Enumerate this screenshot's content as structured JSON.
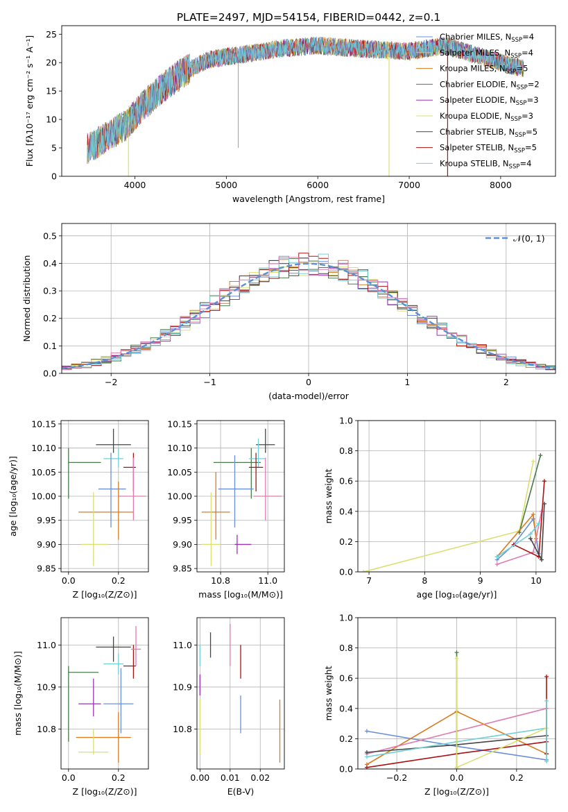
{
  "figure_title": "PLATE=2497, MJD=54154, FIBERID=0442, z=0.1",
  "colors": {
    "Chabrier MILES": "#6a8fd8",
    "Salpeter MILES": "#e8c25a",
    "Kroupa MILES": "#d97b20",
    "Chabrier ELODIE": "#4a7a4a",
    "Salpeter ELODIE": "#9b30b5",
    "Kroupa ELODIE": "#d8e070",
    "Chabrier STELIB": "#444444",
    "Salpeter STELIB": "#aa1111",
    "Kroupa STELIB": "#70d0d8",
    "pink": "#e07ab0",
    "normal": "#5b8fd6"
  },
  "chart_data": [
    {
      "type": "line",
      "panel": "spectrum",
      "title": "PLATE=2497, MJD=54154, FIBERID=0442, z=0.1",
      "xlabel": "wavelength [Angstrom, rest frame]",
      "ylabel": "Flux [fλ10⁻¹⁷ erg cm⁻² s⁻¹ A⁻¹]",
      "xlim": [
        3200,
        8600
      ],
      "ylim": [
        0,
        26.5
      ],
      "xticks": [
        4000,
        5000,
        6000,
        7000,
        8000
      ],
      "xtick_labels": [
        "4000",
        "5000",
        "6000",
        "7000",
        "8000"
      ],
      "yticks": [
        0,
        5,
        10,
        15,
        20,
        25
      ],
      "ytick_labels": [
        "0",
        "5",
        "10",
        "15",
        "20",
        "25"
      ],
      "grid": false,
      "legend_position": "top-right",
      "continuum_x": [
        3500,
        3700,
        3900,
        4100,
        4300,
        4500,
        4800,
        5200,
        5600,
        6000,
        6400,
        7000,
        7400,
        7800,
        8100,
        8250
      ],
      "continuum_y": [
        5.0,
        7.0,
        9.0,
        12.5,
        15.5,
        18.0,
        20.5,
        21.5,
        22.5,
        23.0,
        22.5,
        22.0,
        23.0,
        21.0,
        19.5,
        19.0
      ],
      "spikes": [
        {
          "x": 3930,
          "color": "#d8e070"
        },
        {
          "x": 6780,
          "color": "#d8e070"
        },
        {
          "x": 7420,
          "color": "#aa1111"
        }
      ],
      "legend": [
        {
          "label": "Chabrier MILES, N",
          "sub": "SSP",
          "suffix": "=4",
          "color": "#6a8fd8"
        },
        {
          "label": "Salpeter MILES, N",
          "sub": "SSP",
          "suffix": "=4",
          "color": "#e8c25a"
        },
        {
          "label": "Kroupa MILES, N",
          "sub": "SSP",
          "suffix": "=5",
          "color": "#d97b20"
        },
        {
          "label": "Chabrier ELODIE, N",
          "sub": "SSP",
          "suffix": "=2",
          "color": "#4a7a4a"
        },
        {
          "label": "Salpeter ELODIE, N",
          "sub": "SSP",
          "suffix": "=3",
          "color": "#9b30b5"
        },
        {
          "label": "Kroupa ELODIE, N",
          "sub": "SSP",
          "suffix": "=3",
          "color": "#d8e070"
        },
        {
          "label": "Chabrier STELIB, N",
          "sub": "SSP",
          "suffix": "=5",
          "color": "#444444"
        },
        {
          "label": "Salpeter STELIB, N",
          "sub": "SSP",
          "suffix": "=5",
          "color": "#aa1111"
        },
        {
          "label": "Kroupa STELIB, N",
          "sub": "SSP",
          "suffix": "=4",
          "color": "#70d0d8"
        }
      ]
    },
    {
      "type": "histogram",
      "panel": "residuals",
      "xlabel": "(data-model)/error",
      "ylabel": "Normed distribution",
      "xlim": [
        -2.5,
        2.5
      ],
      "ylim": [
        0,
        0.545
      ],
      "xticks": [
        -2,
        -1,
        0,
        1,
        2
      ],
      "xtick_labels": [
        "−2",
        "−1",
        "0",
        "1",
        "2"
      ],
      "yticks": [
        0,
        0.1,
        0.2,
        0.3,
        0.4,
        0.5
      ],
      "ytick_labels": [
        "0.0",
        "0.1",
        "0.2",
        "0.3",
        "0.4",
        "0.5"
      ],
      "grid": true,
      "bin_width": 0.1,
      "legend": [
        {
          "label": "𝒩(0, 1)",
          "style": "dashed",
          "color": "#5b8fd6"
        }
      ]
    },
    {
      "type": "errorbar",
      "panel": "age-vs-Z",
      "xlabel": "Z [log₁₀(Z/Z⊙)]",
      "ylabel": "age  [log₁₀(age/yr)]",
      "xlim": [
        -0.03,
        0.32
      ],
      "ylim": [
        9.843,
        10.157
      ],
      "xticks": [
        0.0,
        0.2
      ],
      "xtick_labels": [
        "0.0",
        "0.2"
      ],
      "yticks": [
        9.85,
        9.9,
        9.95,
        10.0,
        10.05,
        10.1,
        10.15
      ],
      "ytick_labels": [
        "9.85",
        "9.90",
        "9.95",
        "10.00",
        "10.05",
        "10.10",
        "10.15"
      ],
      "grid": true,
      "points": [
        {
          "x": 0.0,
          "y": 10.07,
          "xlo": 0.0,
          "xhi": 0.13,
          "ylo": 9.995,
          "yhi": 10.1,
          "color": "#4a7a4a"
        },
        {
          "x": 0.18,
          "y": 10.107,
          "xlo": 0.11,
          "xhi": 0.25,
          "ylo": 10.09,
          "yhi": 10.14,
          "color": "#444444"
        },
        {
          "x": 0.2,
          "y": 10.078,
          "xlo": 0.14,
          "xhi": 0.22,
          "ylo": 10.06,
          "yhi": 10.1,
          "color": "#70d0d8"
        },
        {
          "x": 0.26,
          "y": 10.06,
          "xlo": 0.22,
          "xhi": 0.27,
          "ylo": 10.01,
          "yhi": 10.09,
          "color": "#aa1111"
        },
        {
          "x": 0.17,
          "y": 10.015,
          "xlo": 0.12,
          "xhi": 0.23,
          "ylo": 9.935,
          "yhi": 10.09,
          "color": "#6a8fd8"
        },
        {
          "x": 0.26,
          "y": 10.0,
          "xlo": 0.2,
          "xhi": 0.31,
          "ylo": 9.95,
          "yhi": 10.08,
          "color": "#e07ab0"
        },
        {
          "x": 0.2,
          "y": 9.967,
          "xlo": 0.04,
          "xhi": 0.26,
          "ylo": 9.91,
          "yhi": 10.03,
          "color": "#d97b20"
        },
        {
          "x": 0.1,
          "y": 9.9,
          "xlo": 0.05,
          "xhi": 0.16,
          "ylo": 9.855,
          "yhi": 10.008,
          "color": "#d8e070"
        }
      ]
    },
    {
      "type": "errorbar",
      "panel": "age-vs-mass",
      "xlabel": "mass [log₁₀(M/M⊙)]",
      "xlim": [
        10.7,
        11.07
      ],
      "ylim": [
        9.843,
        10.157
      ],
      "xticks": [
        10.8,
        11.0
      ],
      "xtick_labels": [
        "10.8",
        "11.0"
      ],
      "yticks": [
        9.85,
        9.9,
        9.95,
        10.0,
        10.05,
        10.1,
        10.15
      ],
      "ytick_labels": [
        "9.85",
        "9.90",
        "9.95",
        "10.00",
        "10.05",
        "10.10",
        "10.15"
      ],
      "grid": true,
      "points": [
        {
          "x": 10.93,
          "y": 10.07,
          "xlo": 10.77,
          "xhi": 10.97,
          "ylo": 9.995,
          "yhi": 10.1,
          "color": "#4a7a4a"
        },
        {
          "x": 10.99,
          "y": 10.107,
          "xlo": 10.95,
          "xhi": 11.03,
          "ylo": 10.09,
          "yhi": 10.14,
          "color": "#444444"
        },
        {
          "x": 10.96,
          "y": 10.078,
          "xlo": 10.92,
          "xhi": 10.99,
          "ylo": 10.06,
          "yhi": 10.12,
          "color": "#70d0d8"
        },
        {
          "x": 10.95,
          "y": 10.06,
          "xlo": 10.92,
          "xhi": 10.98,
          "ylo": 10.01,
          "yhi": 10.09,
          "color": "#aa1111"
        },
        {
          "x": 10.86,
          "y": 10.015,
          "xlo": 10.79,
          "xhi": 10.94,
          "ylo": 9.935,
          "yhi": 10.085,
          "color": "#6a8fd8"
        },
        {
          "x": 10.99,
          "y": 10.0,
          "xlo": 10.94,
          "xhi": 11.06,
          "ylo": 9.95,
          "yhi": 10.08,
          "color": "#e07ab0"
        },
        {
          "x": 10.78,
          "y": 9.967,
          "xlo": 10.72,
          "xhi": 10.84,
          "ylo": 9.91,
          "yhi": 10.05,
          "color": "#d97b20"
        },
        {
          "x": 10.76,
          "y": 9.9,
          "xlo": 10.72,
          "xhi": 10.8,
          "ylo": 9.855,
          "yhi": 10.008,
          "color": "#d8e070"
        },
        {
          "x": 10.87,
          "y": 9.9,
          "xlo": 10.86,
          "xhi": 10.93,
          "ylo": 9.88,
          "yhi": 9.92,
          "color": "#9b30b5"
        }
      ]
    },
    {
      "type": "line",
      "panel": "mass-weight-vs-age",
      "xlabel": "age  [log₁₀(age/yr)]",
      "ylabel": "mass weight",
      "xlim": [
        6.8,
        10.35
      ],
      "ylim": [
        0,
        1.0
      ],
      "xticks": [
        7,
        8,
        9,
        10
      ],
      "xtick_labels": [
        "7",
        "8",
        "9",
        "10"
      ],
      "yticks": [
        0,
        0.2,
        0.4,
        0.6,
        0.8,
        1.0
      ],
      "ytick_labels": [
        "0.0",
        "0.2",
        "0.4",
        "0.6",
        "0.8",
        "1.0"
      ],
      "grid": true,
      "series": [
        {
          "color": "#d8e070",
          "x": [
            6.9,
            9.7,
            9.95
          ],
          "y": [
            0.0,
            0.27,
            0.73
          ]
        },
        {
          "color": "#4a7a4a",
          "x": [
            9.7,
            10.08
          ],
          "y": [
            0.26,
            0.77
          ]
        },
        {
          "color": "#6a8fd8",
          "x": [
            9.3,
            9.6,
            9.95,
            10.05
          ],
          "y": [
            0.08,
            0.18,
            0.35,
            0.12
          ]
        },
        {
          "color": "#d97b20",
          "x": [
            9.3,
            9.95,
            10.0
          ],
          "y": [
            0.1,
            0.38,
            0.22
          ]
        },
        {
          "color": "#e07ab0",
          "x": [
            9.3,
            9.95,
            10.1
          ],
          "y": [
            0.05,
            0.13,
            0.4
          ]
        },
        {
          "color": "#aa1111",
          "x": [
            9.6,
            10.05,
            10.15
          ],
          "y": [
            0.18,
            0.1,
            0.6
          ]
        },
        {
          "color": "#444444",
          "x": [
            9.9,
            10.1,
            10.15
          ],
          "y": [
            0.22,
            0.08,
            0.45
          ]
        },
        {
          "color": "#70d0d8",
          "x": [
            9.3,
            9.9,
            10.05
          ],
          "y": [
            0.1,
            0.25,
            0.32
          ]
        }
      ]
    },
    {
      "type": "errorbar",
      "panel": "mass-vs-Z",
      "xlabel": "Z [log₁₀(Z/Z⊙)]",
      "ylabel": "mass [log₁₀(M/M⊙)]",
      "xlim": [
        -0.03,
        0.32
      ],
      "ylim": [
        10.705,
        11.065
      ],
      "xticks": [
        0.0,
        0.2
      ],
      "xtick_labels": [
        "0.0",
        "0.2"
      ],
      "yticks": [
        10.8,
        10.9,
        11.0
      ],
      "ytick_labels": [
        "10.8",
        "10.9",
        "11.0"
      ],
      "grid": true,
      "points": [
        {
          "x": 0.0,
          "y": 10.935,
          "xlo": 0.0,
          "xhi": 0.12,
          "ylo": 10.77,
          "yhi": 10.95,
          "color": "#4a7a4a"
        },
        {
          "x": 0.18,
          "y": 10.995,
          "xlo": 0.11,
          "xhi": 0.25,
          "ylo": 10.96,
          "yhi": 11.02,
          "color": "#444444"
        },
        {
          "x": 0.2,
          "y": 10.955,
          "xlo": 0.14,
          "xhi": 0.22,
          "ylo": 10.93,
          "yhi": 10.98,
          "color": "#70d0d8"
        },
        {
          "x": 0.26,
          "y": 10.95,
          "xlo": 0.22,
          "xhi": 0.27,
          "ylo": 10.92,
          "yhi": 11.0,
          "color": "#aa1111"
        },
        {
          "x": 0.21,
          "y": 10.86,
          "xlo": 0.14,
          "xhi": 0.26,
          "ylo": 10.79,
          "yhi": 10.945,
          "color": "#6a8fd8"
        },
        {
          "x": 0.27,
          "y": 10.99,
          "xlo": 0.25,
          "xhi": 0.29,
          "ylo": 10.95,
          "yhi": 11.045,
          "color": "#e07ab0"
        },
        {
          "x": 0.2,
          "y": 10.78,
          "xlo": 0.03,
          "xhi": 0.25,
          "ylo": 10.72,
          "yhi": 10.84,
          "color": "#d97b20"
        },
        {
          "x": 0.1,
          "y": 10.745,
          "xlo": 0.04,
          "xhi": 0.16,
          "ylo": 10.74,
          "yhi": 10.8,
          "color": "#d8e070"
        },
        {
          "x": 0.1,
          "y": 10.86,
          "xlo": 0.04,
          "xhi": 0.13,
          "ylo": 10.83,
          "yhi": 10.92,
          "color": "#9b30b5"
        }
      ]
    },
    {
      "type": "errorbar",
      "panel": "mass-vs-EBV",
      "xlabel": "E(B-V)",
      "xlim": [
        -0.001,
        0.028
      ],
      "ylim": [
        10.705,
        11.065
      ],
      "xticks": [
        0.0,
        0.01,
        0.02
      ],
      "xtick_labels": [
        "0.00",
        "0.01",
        "0.02"
      ],
      "yticks": [
        10.8,
        10.9,
        11.0
      ],
      "ytick_labels": [
        "10.8",
        "10.9",
        "11.0"
      ],
      "grid": true,
      "points": [
        {
          "x": 0.0,
          "y": 10.8,
          "ylo": 10.74,
          "yhi": 10.87,
          "color": "#d8e070"
        },
        {
          "x": 0.0,
          "y": 10.9,
          "ylo": 10.88,
          "yhi": 10.93,
          "color": "#9b30b5"
        },
        {
          "x": 0.0,
          "y": 10.97,
          "ylo": 10.95,
          "yhi": 11.0,
          "color": "#70d0d8"
        },
        {
          "x": 0.0035,
          "y": 11.0,
          "ylo": 10.97,
          "yhi": 11.03,
          "color": "#444444"
        },
        {
          "x": 0.01,
          "y": 11.0,
          "ylo": 10.95,
          "yhi": 11.05,
          "color": "#e07ab0"
        },
        {
          "x": 0.0135,
          "y": 10.96,
          "ylo": 10.92,
          "yhi": 11.0,
          "color": "#aa1111"
        },
        {
          "x": 0.0135,
          "y": 10.84,
          "ylo": 10.79,
          "yhi": 10.88,
          "color": "#6a8fd8"
        },
        {
          "x": 0.0265,
          "y": 10.8,
          "ylo": 10.72,
          "yhi": 10.87,
          "color": "#d97b20"
        }
      ]
    },
    {
      "type": "line",
      "panel": "mass-weight-vs-Z",
      "xlabel": "Z [log₁₀(Z/Z⊙)]",
      "ylabel": "mass weight",
      "xlim": [
        -0.33,
        0.33
      ],
      "ylim": [
        0,
        1.0
      ],
      "xticks": [
        -0.2,
        0.0,
        0.2
      ],
      "xtick_labels": [
        "−0.2",
        "0.0",
        "0.2"
      ],
      "yticks": [
        0,
        0.2,
        0.4,
        0.6,
        0.8,
        1.0
      ],
      "ytick_labels": [
        "0.0",
        "0.2",
        "0.4",
        "0.6",
        "0.8",
        "1.0"
      ],
      "grid": true,
      "series": [
        {
          "color": "#6a8fd8",
          "x": [
            -0.3,
            0.0,
            0.3
          ],
          "y": [
            0.25,
            0.15,
            0.06
          ]
        },
        {
          "color": "#d97b20",
          "x": [
            -0.3,
            0.0,
            0.3
          ],
          "y": [
            0.03,
            0.38,
            0.1
          ]
        },
        {
          "color": "#e07ab0",
          "x": [
            -0.3,
            0.0,
            0.3
          ],
          "y": [
            0.1,
            0.25,
            0.4
          ]
        },
        {
          "color": "#aa1111",
          "x": [
            -0.3,
            0.0,
            0.3
          ],
          "y": [
            0.01,
            0.1,
            0.18
          ]
        },
        {
          "color": "#444444",
          "x": [
            -0.3,
            0.0,
            0.3
          ],
          "y": [
            0.11,
            0.16,
            0.22
          ]
        },
        {
          "color": "#70d0d8",
          "x": [
            -0.3,
            0.0,
            0.3
          ],
          "y": [
            0.08,
            0.18,
            0.27
          ]
        },
        {
          "color": "#d8e070",
          "x": [
            0.0,
            0.3
          ],
          "y": [
            0.01,
            0.27
          ]
        },
        {
          "color": "#4a7a4a",
          "x": [
            0.0,
            0.0
          ],
          "y": [
            0.0,
            0.77
          ]
        },
        {
          "color": "#d8e070",
          "x": [
            0.0,
            0.0
          ],
          "y": [
            0.0,
            0.73
          ]
        },
        {
          "color": "#aa1111",
          "x": [
            0.3,
            0.3
          ],
          "y": [
            0.1,
            0.61
          ]
        },
        {
          "color": "#70d0d8",
          "x": [
            0.3,
            0.3
          ],
          "y": [
            0.05,
            0.45
          ]
        }
      ]
    }
  ]
}
